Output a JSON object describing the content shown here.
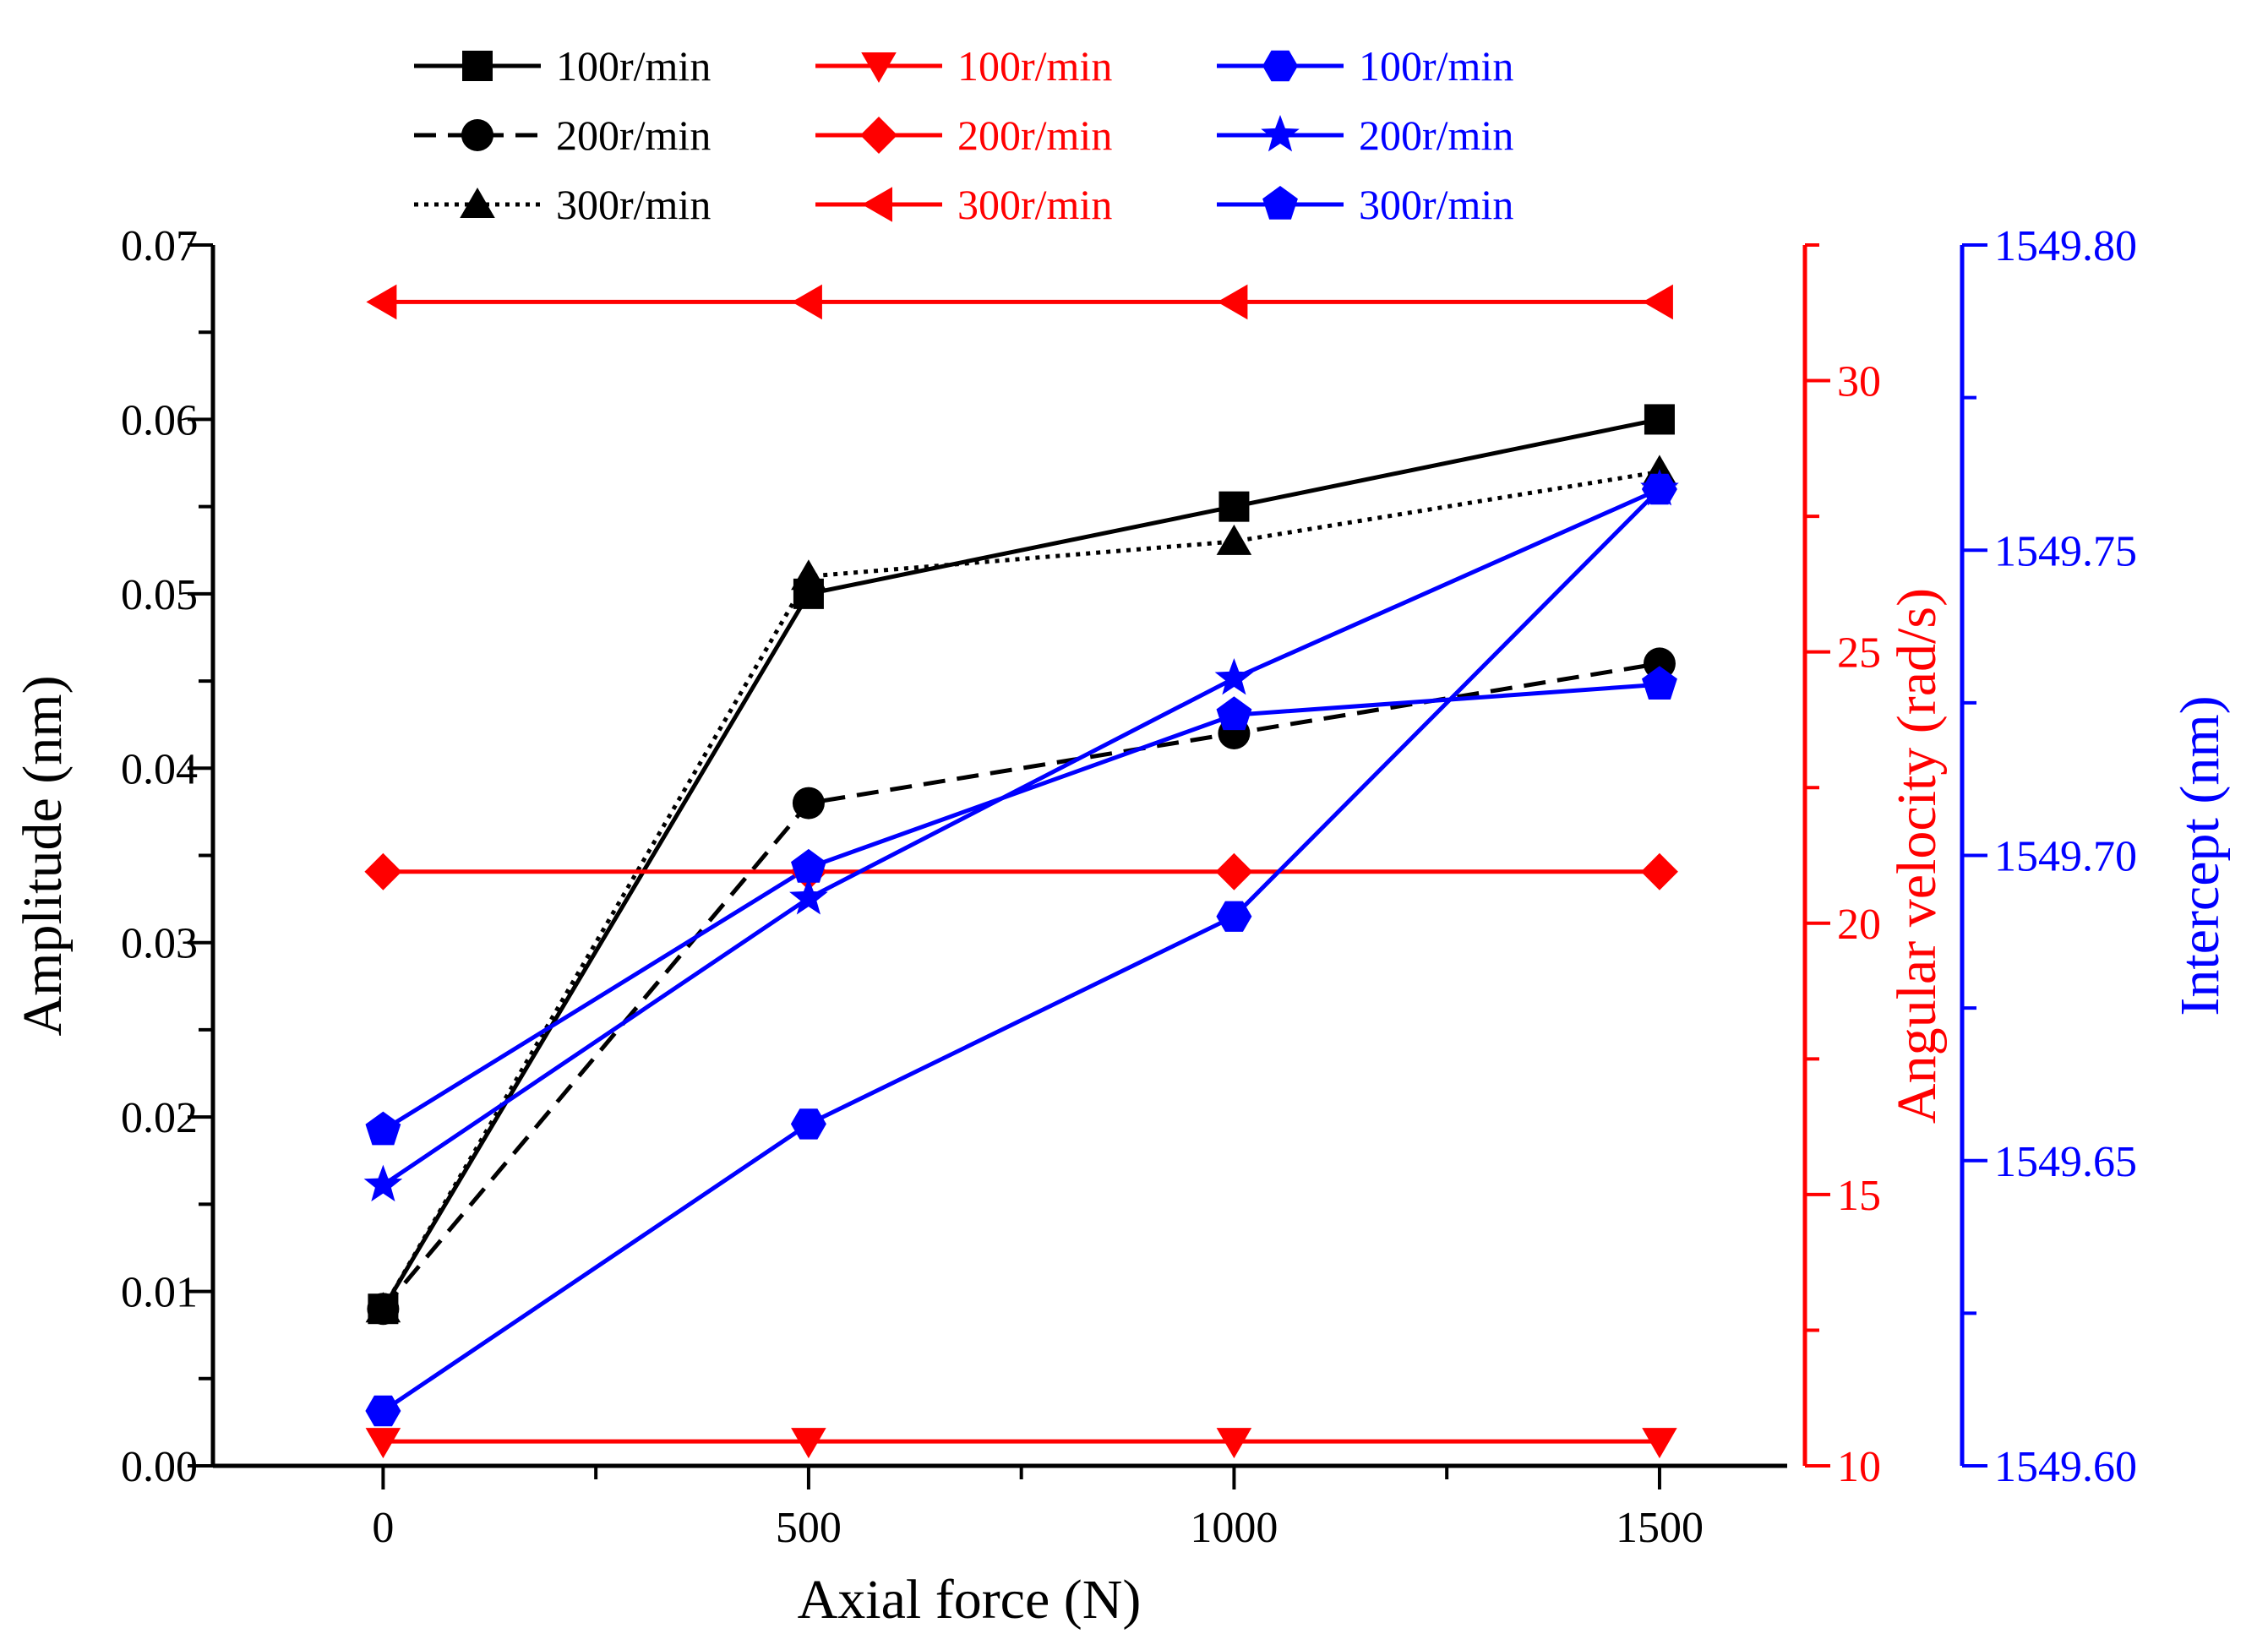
{
  "chart_data": {
    "type": "line",
    "x": [
      0,
      500,
      1000,
      1500
    ],
    "x_ticks": [
      "0",
      "500",
      "1000",
      "1500"
    ],
    "xlabel": "Axial force (N)",
    "xlim": [
      -200,
      1650
    ],
    "axes": {
      "left": {
        "label": "Amplitude (nm)",
        "color": "#000000",
        "ylim": [
          0,
          0.07
        ],
        "ticks": [
          "0.00",
          "0.01",
          "0.02",
          "0.03",
          "0.04",
          "0.05",
          "0.06",
          "0.07"
        ],
        "tick_values": [
          0,
          0.01,
          0.02,
          0.03,
          0.04,
          0.05,
          0.06,
          0.07
        ]
      },
      "right1": {
        "label": "Angular velocity (rad/s)",
        "color": "#ff0000",
        "ylim": [
          10,
          32.5
        ],
        "ticks": [
          "10",
          "15",
          "20",
          "25",
          "30"
        ],
        "tick_values": [
          10,
          15,
          20,
          25,
          30
        ]
      },
      "right2": {
        "label": "Intercept (nm)",
        "color": "#0000ff",
        "ylim": [
          1549.6,
          1549.8
        ],
        "ticks": [
          "1549.60",
          "1549.65",
          "1549.70",
          "1549.75",
          "1549.80"
        ],
        "tick_values": [
          1549.6,
          1549.65,
          1549.7,
          1549.75,
          1549.8
        ]
      }
    },
    "series": [
      {
        "name": "100r/min",
        "axis": "left",
        "color": "#000000",
        "marker": "square",
        "dash": "solid",
        "values": [
          0.009,
          0.05,
          0.055,
          0.06
        ]
      },
      {
        "name": "200r/min",
        "axis": "left",
        "color": "#000000",
        "marker": "circle",
        "dash": "dashed",
        "values": [
          0.009,
          0.038,
          0.042,
          0.046
        ]
      },
      {
        "name": "300r/min",
        "axis": "left",
        "color": "#000000",
        "marker": "triangle-up",
        "dash": "dotted",
        "values": [
          0.009,
          0.051,
          0.053,
          0.057
        ]
      },
      {
        "name": "100r/min",
        "axis": "right1",
        "color": "#ff0000",
        "marker": "triangle-down",
        "dash": "solid",
        "values": [
          10.45,
          10.45,
          10.45,
          10.45
        ]
      },
      {
        "name": "200r/min",
        "axis": "right1",
        "color": "#ff0000",
        "marker": "diamond",
        "dash": "solid",
        "values": [
          20.95,
          20.95,
          20.95,
          20.95
        ]
      },
      {
        "name": "300r/min",
        "axis": "right1",
        "color": "#ff0000",
        "marker": "triangle-left",
        "dash": "solid",
        "values": [
          31.45,
          31.45,
          31.45,
          31.45
        ]
      },
      {
        "name": "100r/min",
        "axis": "right2",
        "color": "#0000ff",
        "marker": "hexagon",
        "dash": "solid",
        "values": [
          1549.609,
          1549.656,
          1549.69,
          1549.76
        ]
      },
      {
        "name": "200r/min",
        "axis": "right2",
        "color": "#0000ff",
        "marker": "star",
        "dash": "solid",
        "values": [
          1549.646,
          1549.693,
          1549.729,
          1549.76
        ]
      },
      {
        "name": "300r/min",
        "axis": "right2",
        "color": "#0000ff",
        "marker": "pentagon",
        "dash": "solid",
        "values": [
          1549.655,
          1549.698,
          1549.723,
          1549.728
        ]
      }
    ]
  }
}
